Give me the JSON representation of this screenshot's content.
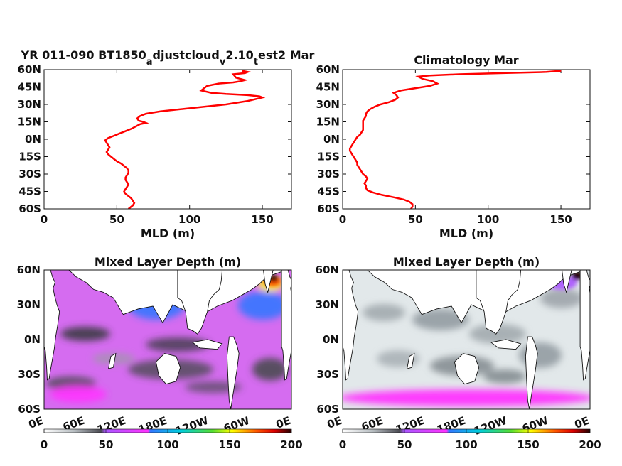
{
  "chart_data": [
    {
      "type": "line",
      "title_parts": [
        "YR 011-090 BT1850",
        "a",
        "djustcloud",
        "v",
        "2.10",
        "t",
        "est2 Mar"
      ],
      "xlabel": "MLD (m)",
      "xlim": [
        0,
        170
      ],
      "xticks": [
        0,
        50,
        100,
        150
      ],
      "ylim": [
        -60,
        60
      ],
      "yticks": [
        "60N",
        "45N",
        "30N",
        "15N",
        "0N",
        "15S",
        "30S",
        "45S",
        "60S"
      ],
      "ytick_values": [
        60,
        45,
        30,
        15,
        0,
        -15,
        -30,
        -45,
        -60
      ],
      "line_color": "#ff0000",
      "series": [
        {
          "x": [
            58,
            59,
            60,
            61,
            62,
            61,
            60,
            58,
            56,
            55,
            56,
            57,
            58,
            57,
            56,
            56,
            57,
            58,
            58,
            57,
            55,
            53,
            50,
            48,
            46,
            44,
            43,
            44,
            45,
            44,
            43,
            42,
            44,
            48,
            52,
            56,
            60,
            63,
            66,
            70,
            68,
            65,
            64,
            66,
            70,
            80,
            95,
            110,
            125,
            140,
            150,
            148,
            140,
            125,
            115,
            108,
            110,
            112,
            120,
            130,
            135,
            138,
            132,
            130,
            138,
            140,
            136
          ],
          "y": [
            -60,
            -59,
            -58,
            -57,
            -55,
            -53,
            -51,
            -49,
            -47,
            -45,
            -43,
            -41,
            -39,
            -37,
            -35,
            -33,
            -31,
            -29,
            -27,
            -25,
            -23,
            -21,
            -19,
            -17,
            -15,
            -13,
            -11,
            -9,
            -7,
            -5,
            -3,
            -1,
            1,
            3,
            5,
            7,
            9,
            11,
            13,
            14,
            15,
            16,
            18,
            20,
            22,
            24,
            26,
            28,
            30,
            33,
            36,
            37,
            38,
            39,
            40,
            42,
            44,
            46,
            48,
            49,
            50,
            51,
            53,
            56,
            57,
            58,
            59
          ]
        }
      ]
    },
    {
      "type": "line",
      "title": "Climatology Mar",
      "xlabel": "MLD (m)",
      "xlim": [
        0,
        170
      ],
      "xticks": [
        0,
        50,
        100,
        150
      ],
      "ylim": [
        -60,
        60
      ],
      "yticks": [
        "60N",
        "45N",
        "30N",
        "15N",
        "0N",
        "15S",
        "30S",
        "45S",
        "60S"
      ],
      "ytick_values": [
        60,
        45,
        30,
        15,
        0,
        -15,
        -30,
        -45,
        -60
      ],
      "line_color": "#ff0000",
      "series": [
        {
          "x": [
            47,
            48,
            48,
            46,
            42,
            35,
            27,
            21,
            17,
            16,
            16,
            15,
            16,
            17,
            16,
            14,
            13,
            12,
            11,
            10,
            10,
            9,
            8,
            7,
            6,
            5,
            5,
            6,
            7,
            8,
            9,
            10,
            12,
            13,
            14,
            14,
            14,
            14,
            14,
            15,
            16,
            16,
            17,
            19,
            22,
            26,
            32,
            36,
            38,
            37,
            35,
            40,
            50,
            60,
            65,
            62,
            55,
            52,
            60,
            80,
            110,
            140,
            150,
            148
          ],
          "y": [
            -60,
            -58,
            -56,
            -54,
            -52,
            -50,
            -48,
            -46,
            -44,
            -42,
            -40,
            -38,
            -36,
            -34,
            -32,
            -30,
            -28,
            -26,
            -24,
            -22,
            -20,
            -18,
            -16,
            -14,
            -12,
            -10,
            -8,
            -6,
            -4,
            -2,
            0,
            2,
            4,
            6,
            8,
            10,
            12,
            14,
            16,
            18,
            20,
            22,
            24,
            26,
            28,
            30,
            32,
            34,
            36,
            38,
            40,
            42,
            44,
            46,
            48,
            50,
            52,
            54,
            55,
            56,
            57,
            58,
            59,
            60
          ]
        }
      ]
    },
    {
      "type": "heatmap",
      "title": "Mixed Layer Depth (m)",
      "xticks": [
        "0E",
        "60E",
        "120E",
        "180E",
        "120W",
        "60W",
        "0E"
      ],
      "yticks": [
        "60N",
        "30N",
        "0N",
        "30S",
        "60S"
      ],
      "colorbar": {
        "ticks": [
          0,
          50,
          100,
          150,
          200
        ],
        "stops": [
          "#ffffff",
          "#b8bec2",
          "#4a4a52",
          "#aa55ff",
          "#ff33ff",
          "#3377ff",
          "#00ccdd",
          "#55dd33",
          "#ffff00",
          "#ff5500",
          "#dd0000",
          "#220000"
        ]
      }
    },
    {
      "type": "heatmap",
      "title": "Mixed Layer Depth (m)",
      "xticks": [
        "0E",
        "60E",
        "120E",
        "180E",
        "120W",
        "60W",
        "0E"
      ],
      "yticks": [
        "60N",
        "30N",
        "0N",
        "30S",
        "60S"
      ],
      "colorbar": {
        "ticks": [
          0,
          50,
          100,
          150,
          200
        ],
        "stops": [
          "#ffffff",
          "#b8bec2",
          "#4a4a52",
          "#aa55ff",
          "#ff33ff",
          "#3377ff",
          "#00ccdd",
          "#55dd33",
          "#ffff00",
          "#ff5500",
          "#dd0000",
          "#220000"
        ]
      }
    }
  ]
}
